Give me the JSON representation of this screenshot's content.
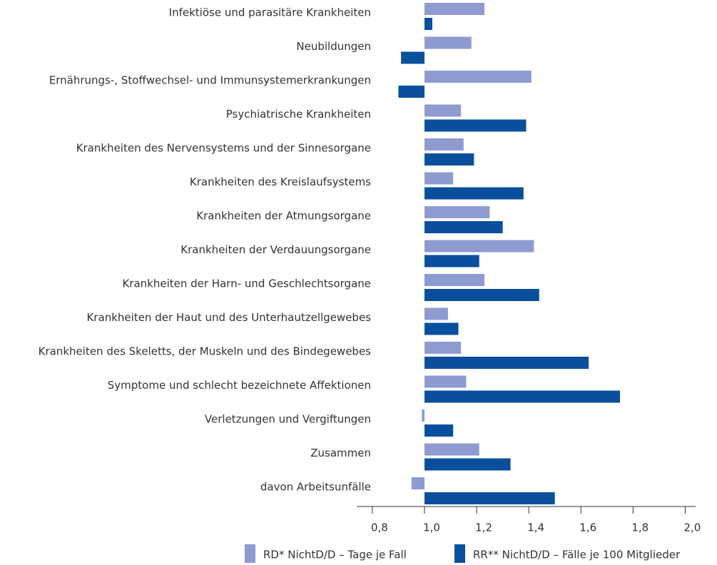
{
  "chart_data": {
    "type": "barh",
    "categories": [
      "Infektiöse und parasitäre Krankheiten",
      "Neubildungen",
      "Ernährungs-, Stoffwechsel- und Immunsystemerkrankungen",
      "Psychiatrische Krankheiten",
      "Krankheiten des Nervensystems und der Sinnesorgane",
      "Krankheiten des Kreislaufsystems",
      "Krankheiten der Atmungsorgane",
      "Krankheiten der Verdauungsorgane",
      "Krankheiten der Harn- und Geschlechtsorgane",
      "Krankheiten der Haut und des Unterhautzellgewebes",
      "Krankheiten des Skeletts, der Muskeln und des Bindegewebes",
      "Symptome und schlecht bezeichnete Affektionen",
      "Verletzungen und Vergiftungen",
      "Zusammen",
      "davon Arbeitsunfälle"
    ],
    "series": [
      {
        "name": "RD* NichtD/D – Tage je Fall",
        "color": "#8e9bd0",
        "values": [
          1.23,
          1.18,
          1.41,
          1.14,
          1.15,
          1.11,
          1.25,
          1.42,
          1.23,
          1.09,
          1.14,
          1.16,
          0.99,
          1.21,
          0.95
        ]
      },
      {
        "name": "RR** NichtD/D – Fälle je 100 Mitglieder",
        "color": "#0a4f9e",
        "values": [
          1.03,
          0.91,
          0.9,
          1.39,
          1.19,
          1.38,
          1.3,
          1.21,
          1.44,
          1.13,
          1.63,
          1.75,
          1.11,
          1.33,
          1.5
        ]
      }
    ],
    "xlim": [
      0.74,
      2.04
    ],
    "xticks": [
      {
        "value": 0.8,
        "label": "0,8"
      },
      {
        "value": 1.0,
        "label": "1,0"
      },
      {
        "value": 1.2,
        "label": "1,2"
      },
      {
        "value": 1.4,
        "label": "1,4"
      },
      {
        "value": 1.6,
        "label": "1,6"
      },
      {
        "value": 1.8,
        "label": "1,8"
      },
      {
        "value": 2.0,
        "label": "2,0"
      }
    ],
    "legend": "bottom"
  }
}
